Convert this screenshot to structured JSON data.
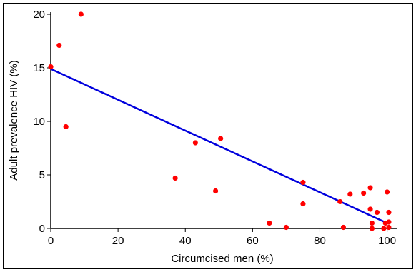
{
  "chart_data": {
    "type": "scatter",
    "title": "",
    "xlabel": "Circumcised men (%)",
    "ylabel": "Adult prevalence HIV (%)",
    "xlim": [
      0,
      102
    ],
    "ylim": [
      0,
      20.2
    ],
    "xticks": [
      0,
      20,
      40,
      60,
      80,
      100
    ],
    "yticks": [
      0,
      5,
      10,
      15,
      20
    ],
    "grid": false,
    "legend": "none",
    "points": [
      {
        "x": 0,
        "y": 15.1
      },
      {
        "x": 2.5,
        "y": 17.1
      },
      {
        "x": 9,
        "y": 20
      },
      {
        "x": 4.5,
        "y": 9.5
      },
      {
        "x": 37,
        "y": 4.7
      },
      {
        "x": 43,
        "y": 8.0
      },
      {
        "x": 50.5,
        "y": 8.4
      },
      {
        "x": 49,
        "y": 3.5
      },
      {
        "x": 65,
        "y": 0.5
      },
      {
        "x": 70,
        "y": 0.1
      },
      {
        "x": 75,
        "y": 4.3
      },
      {
        "x": 75,
        "y": 2.3
      },
      {
        "x": 86,
        "y": 2.5
      },
      {
        "x": 87,
        "y": 0.1
      },
      {
        "x": 89,
        "y": 3.2
      },
      {
        "x": 93,
        "y": 3.3
      },
      {
        "x": 95,
        "y": 3.8
      },
      {
        "x": 95,
        "y": 1.8
      },
      {
        "x": 97,
        "y": 1.5
      },
      {
        "x": 95.5,
        "y": 0.5
      },
      {
        "x": 95.5,
        "y": 0.0
      },
      {
        "x": 99,
        "y": 0.0
      },
      {
        "x": 100,
        "y": 3.4
      },
      {
        "x": 100.5,
        "y": 1.5
      },
      {
        "x": 100.5,
        "y": 0.6
      },
      {
        "x": 100.5,
        "y": 0.1
      },
      {
        "x": 99.5,
        "y": 0.5
      }
    ],
    "fit_line": {
      "x": [
        0,
        100
      ],
      "y": [
        14.9,
        0.5
      ]
    },
    "colors": {
      "points": "#ff0000",
      "line": "#0000dd",
      "axes": "#000000"
    }
  }
}
